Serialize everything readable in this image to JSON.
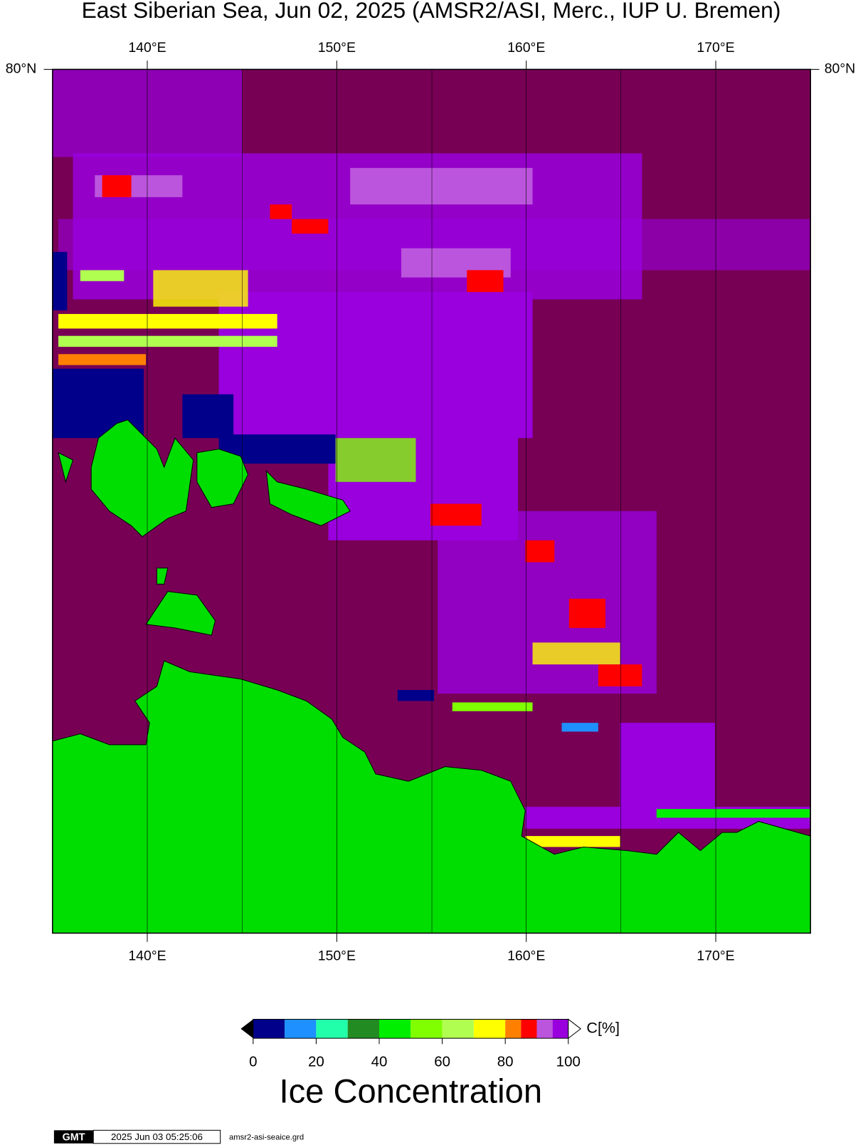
{
  "title": "East Siberian Sea, Jun 02, 2025 (AMSR2/ASI, Merc., IUP U. Bremen)",
  "map": {
    "xlim": [
      135,
      175
    ],
    "xticks": [
      {
        "value": 140,
        "label": "140°E"
      },
      {
        "value": 150,
        "label": "150°E"
      },
      {
        "value": 160,
        "label": "160°E"
      },
      {
        "value": 170,
        "label": "170°E"
      }
    ],
    "lat_tick": {
      "value": 80,
      "label": "80°N"
    }
  },
  "colorbar": {
    "unit": "C[%]",
    "label": "Ice Concentration",
    "levels": [
      0,
      10,
      20,
      30,
      40,
      50,
      60,
      70,
      80,
      85,
      90,
      95,
      100
    ],
    "colors": [
      "#00008b",
      "#1e90ff",
      "#22ffaa",
      "#228b22",
      "#00ee00",
      "#7fff00",
      "#b0ff50",
      "#ffff00",
      "#ff8000",
      "#ff0000",
      "#bb55dd",
      "#9900dd"
    ],
    "ticks": [
      0,
      20,
      40,
      60,
      80,
      100
    ]
  },
  "footer": {
    "logo": "GMT",
    "timestamp": "2025 Jun 03 05:25:06",
    "file": "amsr2-asi-seaice.grd"
  }
}
